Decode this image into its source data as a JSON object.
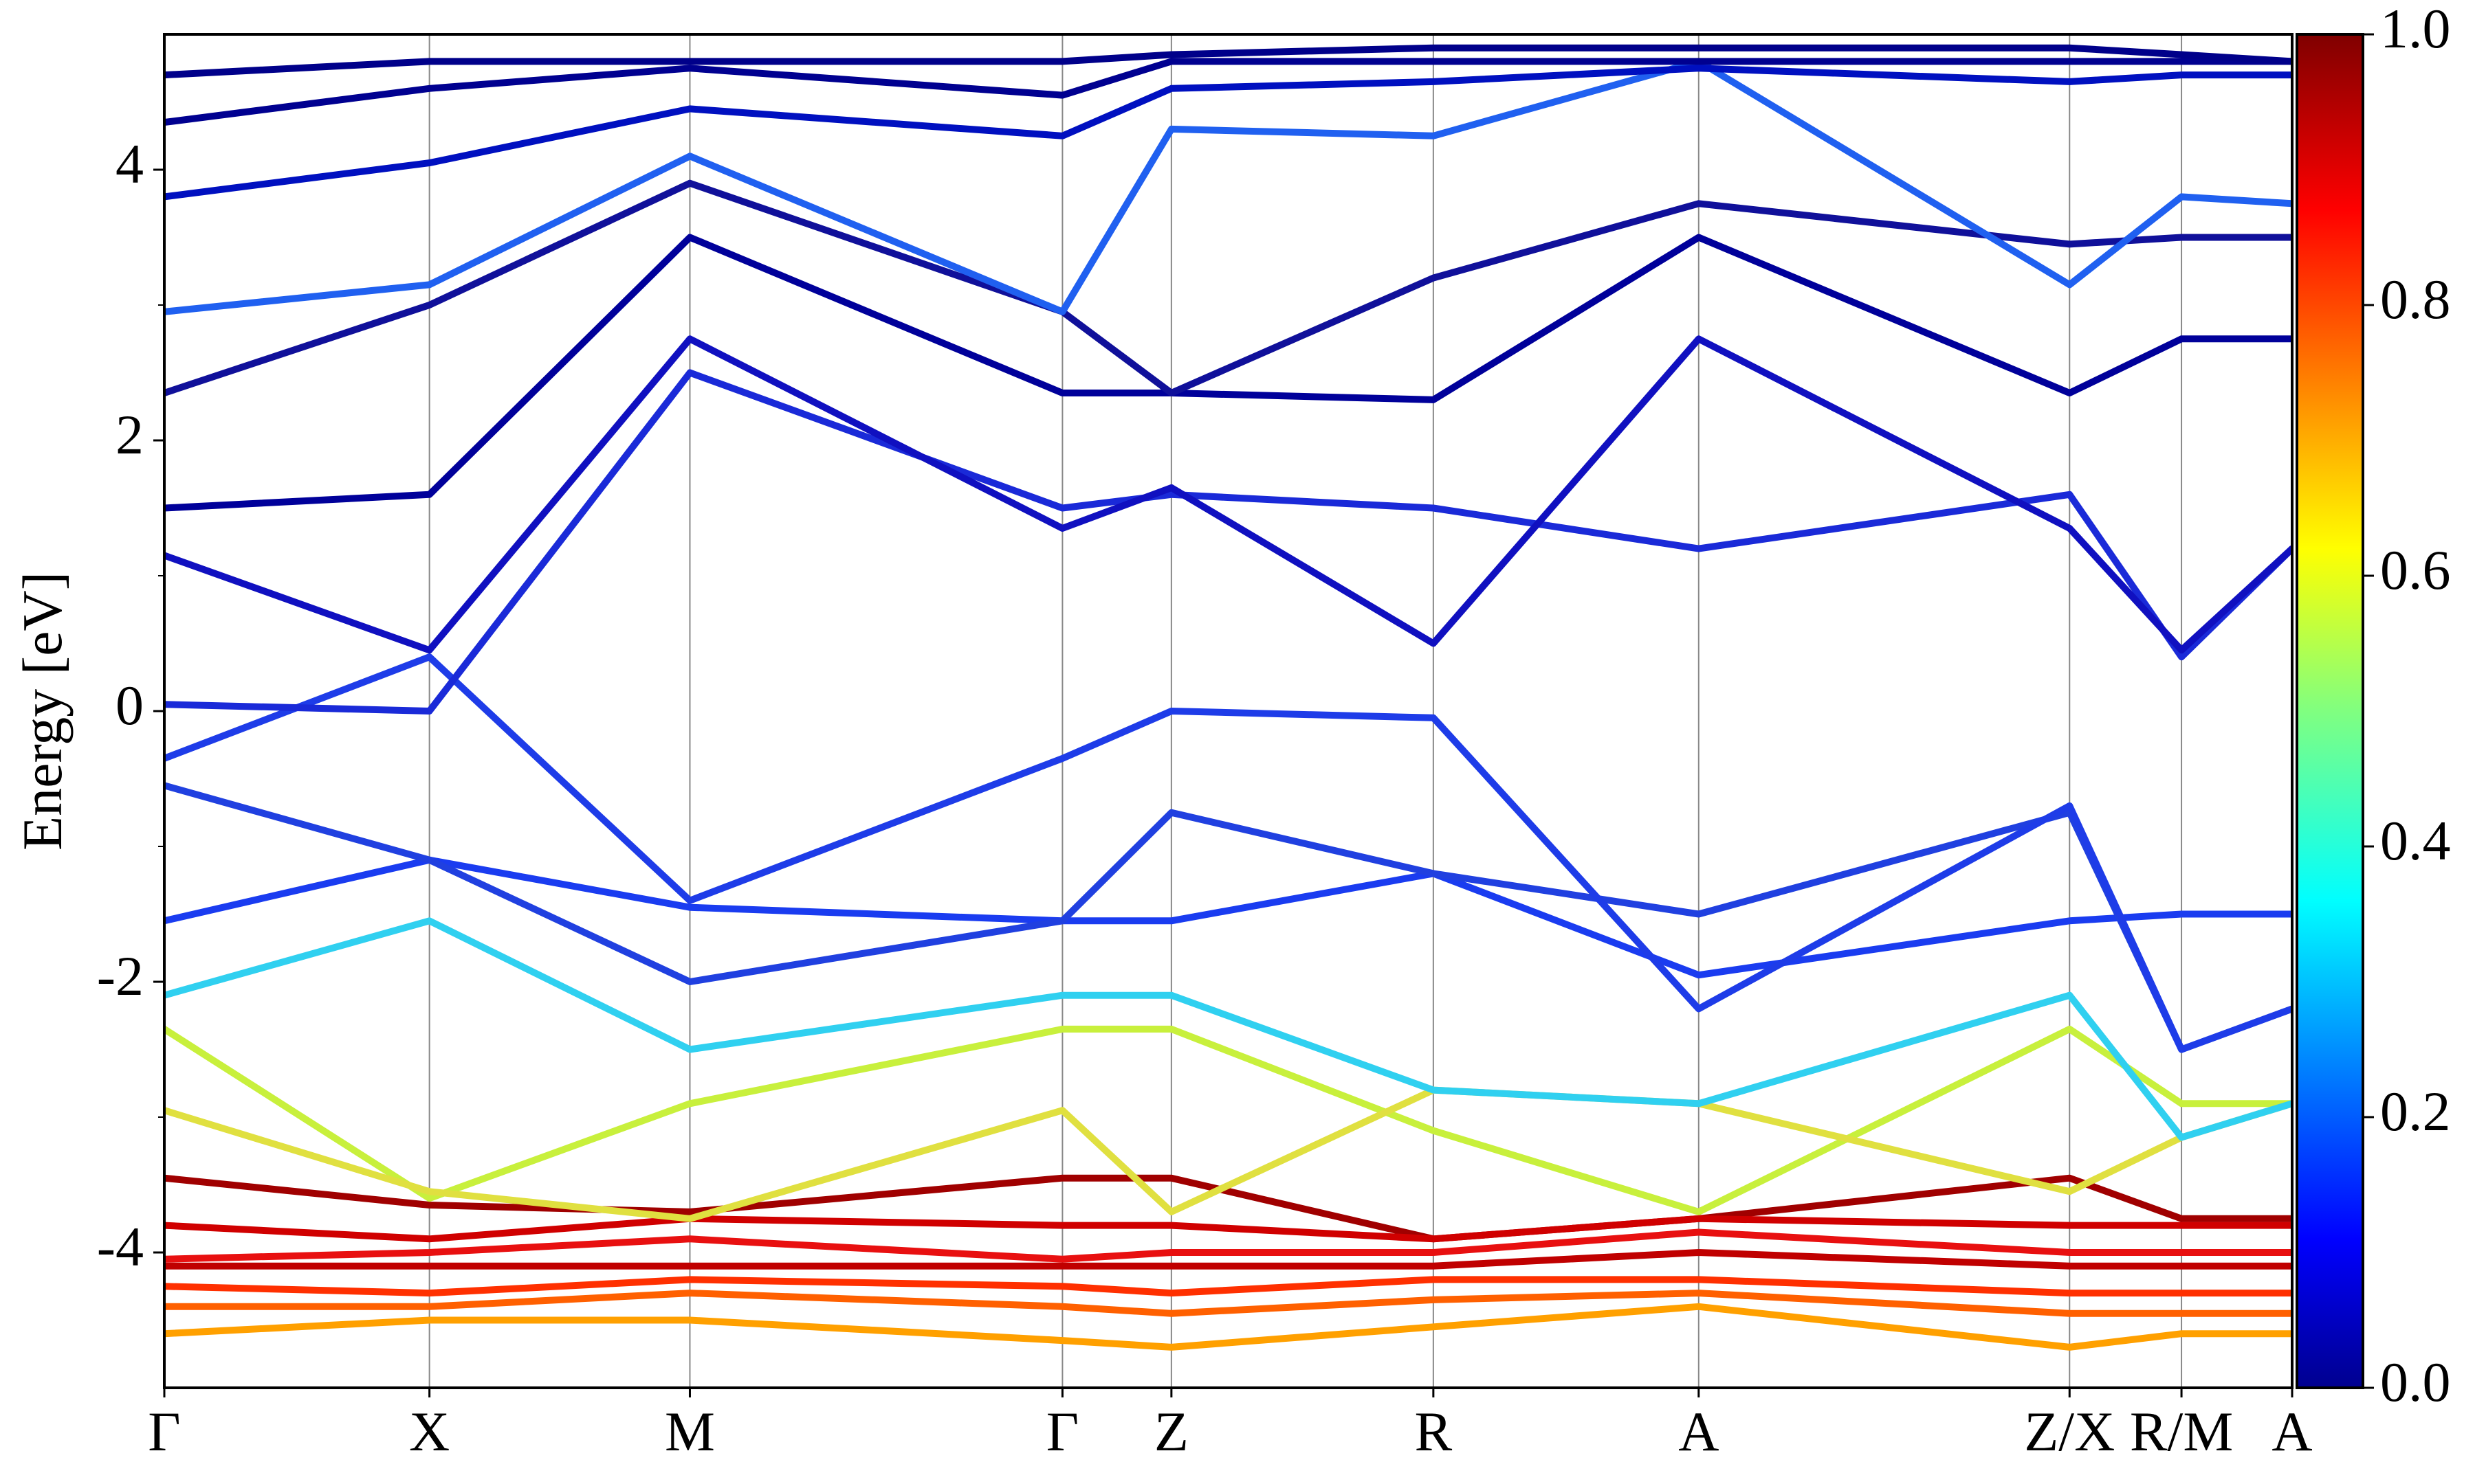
{
  "chart_data": {
    "type": "line",
    "y_label": "Energy [eV]",
    "x": [
      0,
      0.1246,
      0.247,
      0.4221,
      0.4733,
      0.5964,
      0.7211,
      0.8954,
      0.948,
      1
    ],
    "xlim": [
      0,
      1
    ],
    "xticks": [
      {
        "value": 0,
        "label": "Γ"
      },
      {
        "value": 0.1246,
        "label": "X"
      },
      {
        "value": 0.247,
        "label": "M"
      },
      {
        "value": 0.4221,
        "label": "Γ"
      },
      {
        "value": 0.4733,
        "label": "Z"
      },
      {
        "value": 0.5964,
        "label": "R"
      },
      {
        "value": 0.7211,
        "label": "A"
      },
      {
        "value": 0.8954,
        "label": "Z/X"
      },
      {
        "value": 0.948,
        "label": "R/M"
      },
      {
        "value": 1,
        "label": "A"
      }
    ],
    "ylim": [
      -5,
      5
    ],
    "yticks": [
      -4,
      -2,
      0,
      2,
      4
    ],
    "yminorticks": [
      -3,
      -1,
      1,
      3
    ],
    "vertical_grid": true,
    "colorbar": {
      "colormap": "jet",
      "lim": [
        0,
        1
      ],
      "ticks": [
        {
          "value": 0,
          "label": "0.0"
        },
        0.2,
        0.4,
        0.6,
        0.8,
        {
          "value": 1,
          "label": "1.0"
        }
      ]
    },
    "series": [
      {
        "color": "#a00000",
        "values": [
          -3.45,
          -3.65,
          -3.7,
          -3.45,
          -3.45,
          -3.9,
          -3.75,
          -3.45,
          -3.75,
          -3.75
        ]
      },
      {
        "color": "#d00000",
        "values": [
          -3.8,
          -3.9,
          -3.75,
          -3.8,
          -3.8,
          -3.9,
          -3.75,
          -3.8,
          -3.8,
          -3.8
        ]
      },
      {
        "color": "#e81010",
        "values": [
          -4.05,
          -4.0,
          -3.9,
          -4.05,
          -4.0,
          -4.0,
          -3.85,
          -4.0,
          -4.0,
          -4.0
        ]
      },
      {
        "color": "#c00000",
        "values": [
          -4.1,
          -4.1,
          -4.1,
          -4.1,
          -4.1,
          -4.1,
          -4.0,
          -4.1,
          -4.1,
          -4.1
        ]
      },
      {
        "color": "#ff3000",
        "values": [
          -4.25,
          -4.3,
          -4.2,
          -4.25,
          -4.3,
          -4.2,
          -4.2,
          -4.3,
          -4.3,
          -4.3
        ]
      },
      {
        "color": "#ff6000",
        "values": [
          -4.4,
          -4.4,
          -4.3,
          -4.4,
          -4.45,
          -4.35,
          -4.3,
          -4.45,
          -4.45,
          -4.45
        ]
      },
      {
        "color": "#ffa000",
        "values": [
          -4.6,
          -4.5,
          -4.5,
          -4.65,
          -4.7,
          -4.55,
          -4.4,
          -4.7,
          -4.6,
          -4.6
        ]
      },
      {
        "color": "#c8f03c",
        "values": [
          -2.35,
          -3.6,
          -2.9,
          -2.35,
          -2.35,
          -3.1,
          -3.7,
          -2.35,
          -2.9,
          -2.9
        ]
      },
      {
        "color": "#e0e040",
        "values": [
          -2.95,
          -3.55,
          -3.75,
          -2.95,
          -3.7,
          -2.8,
          -2.9,
          -3.55,
          -3.15,
          -2.9
        ]
      },
      {
        "color": "#30d0f0",
        "values": [
          -2.1,
          -1.55,
          -2.5,
          -2.1,
          -2.1,
          -2.8,
          -2.9,
          -2.1,
          -3.15,
          -2.9
        ]
      },
      {
        "color": "#1a3cf0",
        "values": [
          -1.55,
          -1.1,
          -1.45,
          -1.55,
          -1.55,
          -1.2,
          -1.95,
          -1.55,
          -1.5,
          -1.5
        ]
      },
      {
        "color": "#2040e0",
        "values": [
          -0.55,
          -1.1,
          -2.0,
          -1.55,
          -0.75,
          -1.2,
          -1.5,
          -0.75,
          -2.5,
          -2.2
        ]
      },
      {
        "color": "#1e3ce8",
        "values": [
          -0.35,
          0.4,
          -1.4,
          -0.35,
          0.0,
          -0.05,
          -2.2,
          -0.7,
          -2.5,
          -2.2
        ]
      },
      {
        "color": "#1a2ad8",
        "values": [
          0.05,
          0.0,
          2.5,
          1.5,
          1.6,
          1.5,
          1.2,
          1.6,
          0.4,
          1.2
        ]
      },
      {
        "color": "#1010c0",
        "values": [
          1.15,
          0.45,
          2.75,
          1.35,
          1.65,
          0.5,
          2.75,
          1.35,
          0.45,
          1.2
        ]
      },
      {
        "color": "#00009a",
        "values": [
          1.5,
          1.6,
          3.5,
          2.35,
          2.35,
          2.3,
          3.5,
          2.35,
          2.75,
          2.75
        ]
      },
      {
        "color": "#10109a",
        "values": [
          2.35,
          3.0,
          3.9,
          2.95,
          2.35,
          3.2,
          3.75,
          3.45,
          3.5,
          3.5
        ]
      },
      {
        "color": "#2060f0",
        "values": [
          2.95,
          3.15,
          4.1,
          2.95,
          4.3,
          4.25,
          4.8,
          3.15,
          3.8,
          3.75
        ]
      },
      {
        "color": "#0010c0",
        "values": [
          3.8,
          4.05,
          4.45,
          4.25,
          4.6,
          4.65,
          4.75,
          4.65,
          4.7,
          4.7
        ]
      },
      {
        "color": "#000090",
        "values": [
          4.35,
          4.6,
          4.75,
          4.55,
          4.8,
          4.8,
          4.8,
          4.8,
          4.8,
          4.8
        ]
      },
      {
        "color": "#00008a",
        "values": [
          4.7,
          4.8,
          4.8,
          4.8,
          4.85,
          4.9,
          4.9,
          4.9,
          4.85,
          4.8
        ]
      }
    ]
  }
}
